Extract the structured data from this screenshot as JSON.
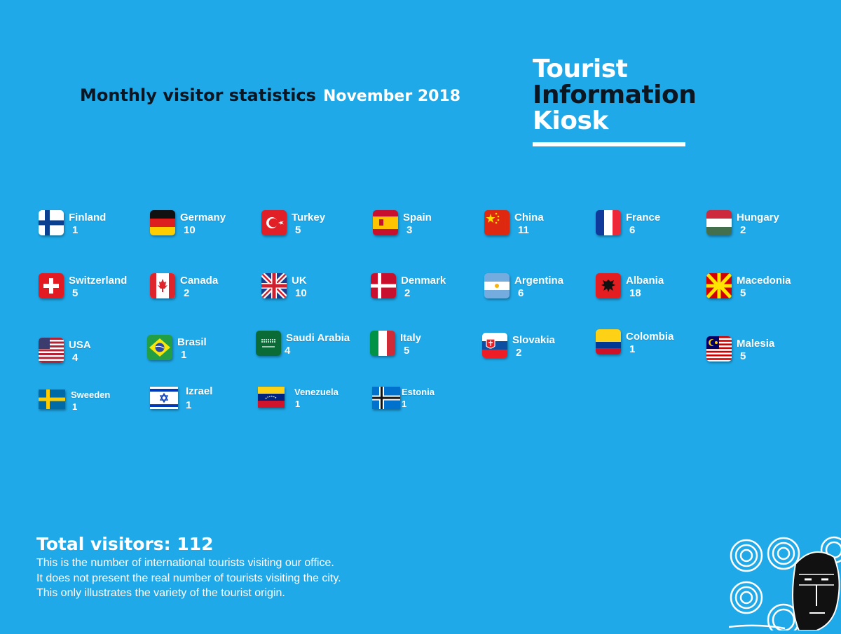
{
  "header": {
    "title": "Monthly visitor statistics",
    "period": "November 2018"
  },
  "logo": {
    "line1": "Tourist",
    "line2": "Information",
    "line3": "Kiosk"
  },
  "countries": [
    {
      "name": "Finland",
      "count": "1",
      "flag": "finland-flag-icon"
    },
    {
      "name": "Germany",
      "count": "10",
      "flag": "germany-flag-icon"
    },
    {
      "name": "Turkey",
      "count": "5",
      "flag": "turkey-flag-icon"
    },
    {
      "name": "Spain",
      "count": "3",
      "flag": "spain-flag-icon"
    },
    {
      "name": "China",
      "count": "11",
      "flag": "china-flag-icon"
    },
    {
      "name": "France",
      "count": "6",
      "flag": "france-flag-icon"
    },
    {
      "name": "Hungary",
      "count": "2",
      "flag": "hungary-flag-icon"
    },
    {
      "name": "Switzerland",
      "count": "5",
      "flag": "switzerland-flag-icon"
    },
    {
      "name": "Canada",
      "count": "2",
      "flag": "canada-flag-icon"
    },
    {
      "name": "UK",
      "count": "10",
      "flag": "uk-flag-icon"
    },
    {
      "name": "Denmark",
      "count": "2",
      "flag": "denmark-flag-icon"
    },
    {
      "name": "Argentina",
      "count": "6",
      "flag": "argentina-flag-icon"
    },
    {
      "name": "Albania",
      "count": "18",
      "flag": "albania-flag-icon"
    },
    {
      "name": "Macedonia",
      "count": "5",
      "flag": "macedonia-flag-icon"
    },
    {
      "name": "USA",
      "count": "4",
      "flag": "usa-flag-icon"
    },
    {
      "name": "Brasil",
      "count": "1",
      "flag": "brazil-flag-icon"
    },
    {
      "name": "Saudi Arabia",
      "count": "4",
      "flag": "saudi-arabia-flag-icon"
    },
    {
      "name": "Italy",
      "count": "5",
      "flag": "italy-flag-icon"
    },
    {
      "name": "Slovakia",
      "count": "2",
      "flag": "slovakia-flag-icon"
    },
    {
      "name": "Colombia",
      "count": "1",
      "flag": "colombia-flag-icon"
    },
    {
      "name": "Malesia",
      "count": "5",
      "flag": "malaysia-flag-icon"
    },
    {
      "name": "Sweeden",
      "count": "1",
      "flag": "sweden-flag-icon"
    },
    {
      "name": "Izrael",
      "count": "1",
      "flag": "israel-flag-icon"
    },
    {
      "name": "Venezuela",
      "count": "1",
      "flag": "venezuela-flag-icon"
    },
    {
      "name": "Estonia",
      "count": "1",
      "flag": "estonia-flag-icon"
    }
  ],
  "summary": {
    "total": "Total visitors: 112",
    "note1": "This is the number of international tourists visiting our office.",
    "note2": "It does not present the real number of tourists visiting the city.",
    "note3": "This only illustrates the variety of the tourist origin."
  },
  "colors": {
    "background": "#1fa9e9",
    "dark_text": "#0b1620"
  }
}
